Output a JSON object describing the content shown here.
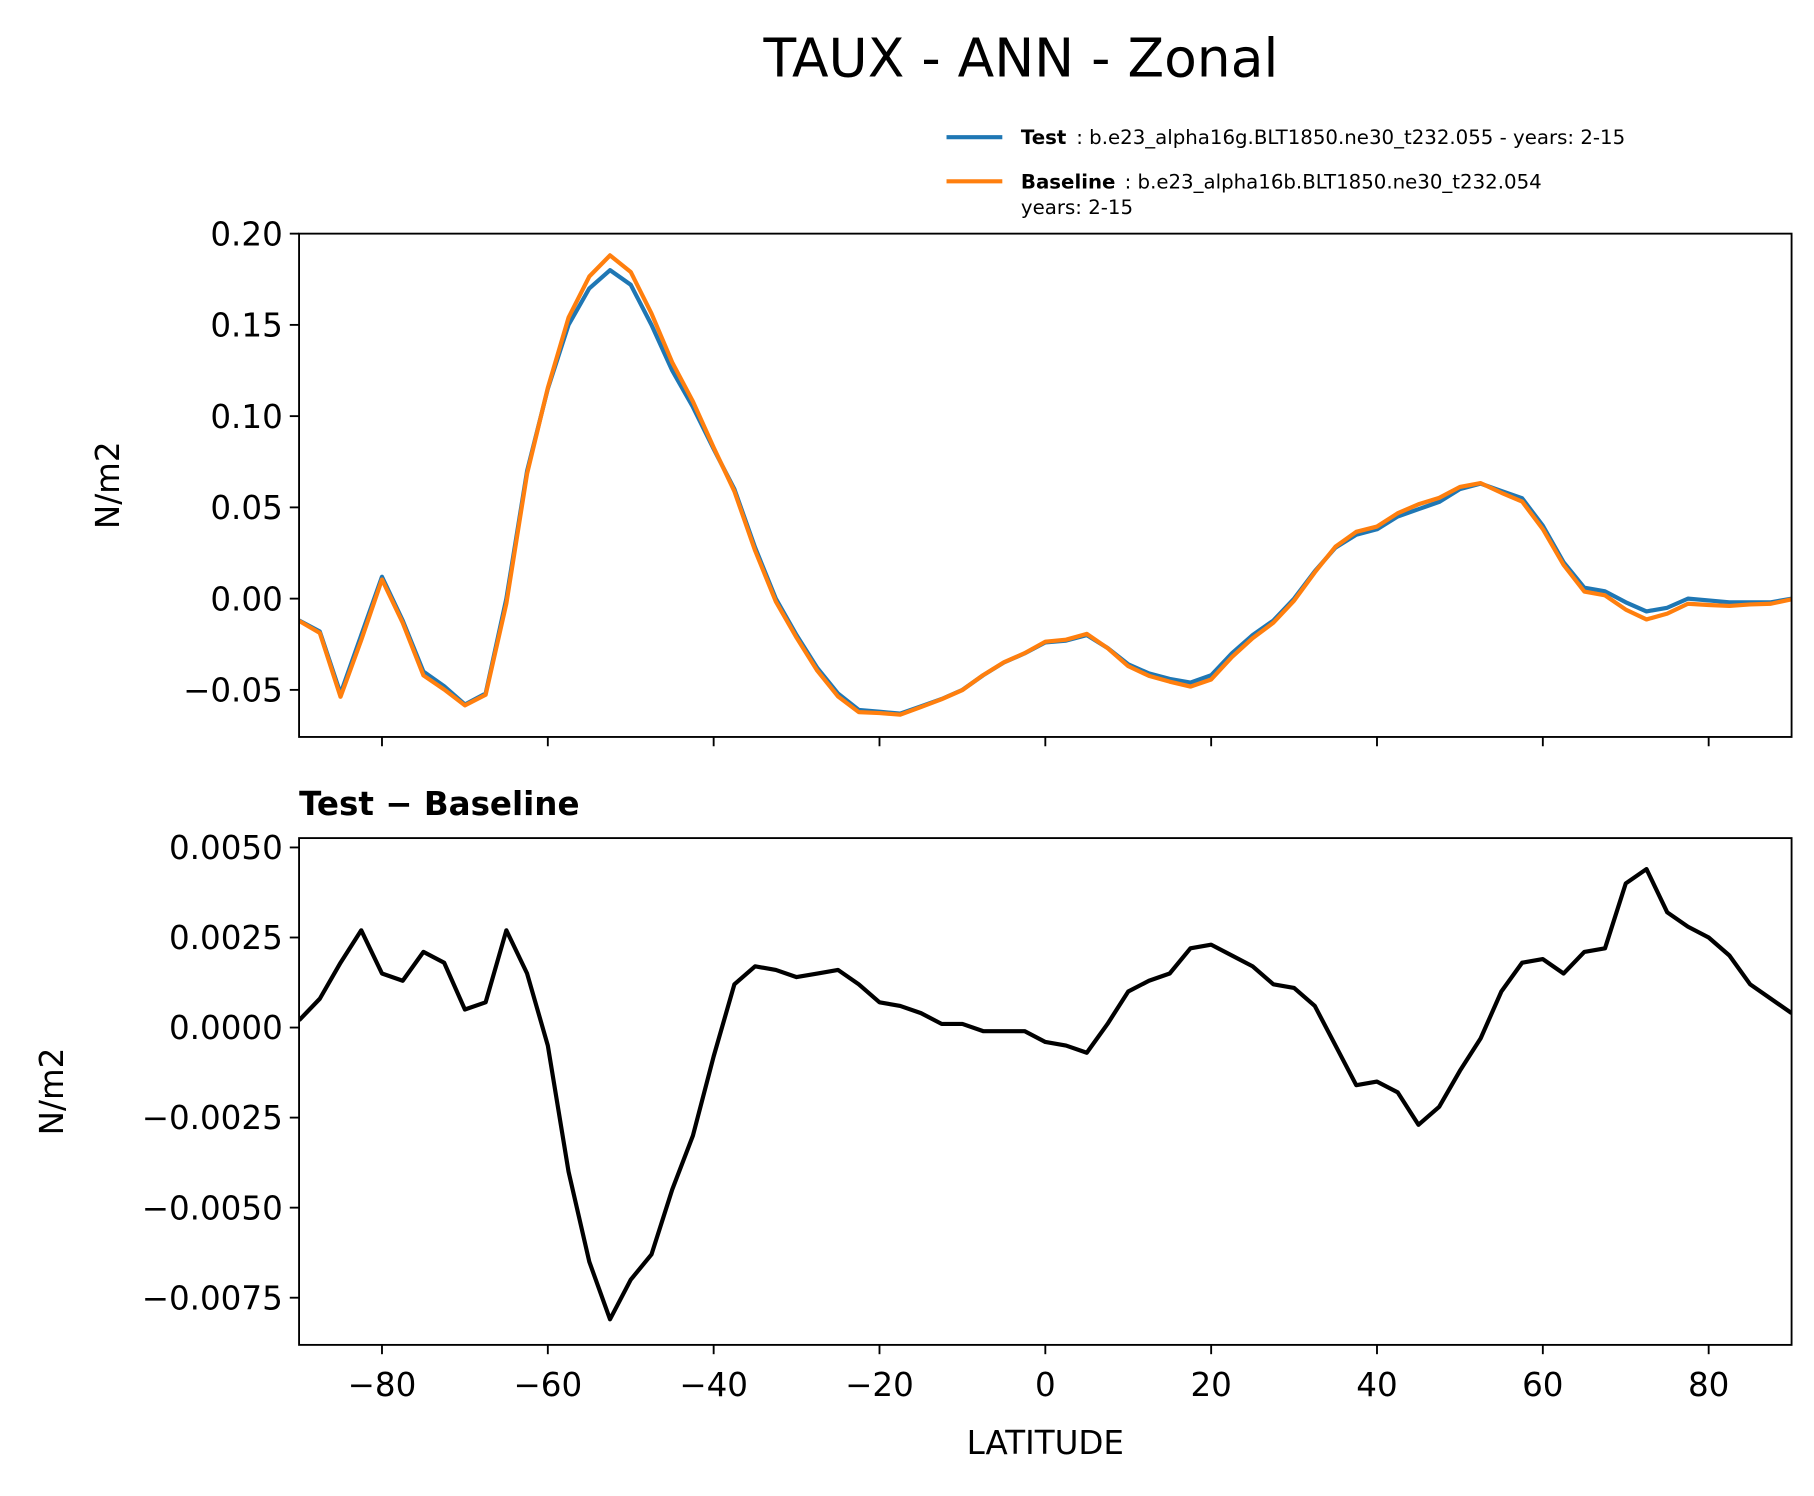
{
  "title": "TAUX - ANN - Zonal",
  "chart_data": [
    {
      "type": "line",
      "ylabel": "N/m2",
      "x": [
        -90,
        -87.5,
        -85,
        -82.5,
        -80,
        -77.5,
        -75,
        -72.5,
        -70,
        -67.5,
        -65,
        -62.5,
        -60,
        -57.5,
        -55,
        -52.5,
        -50,
        -47.5,
        -45,
        -42.5,
        -40,
        -37.5,
        -35,
        -32.5,
        -30,
        -27.5,
        -25,
        -22.5,
        -20,
        -17.5,
        -15,
        -12.5,
        -10,
        -7.5,
        -5,
        -2.5,
        0,
        2.5,
        5,
        7.5,
        10,
        12.5,
        15,
        17.5,
        20,
        22.5,
        25,
        27.5,
        30,
        32.5,
        35,
        37.5,
        40,
        42.5,
        45,
        47.5,
        50,
        52.5,
        55,
        57.5,
        60,
        62.5,
        65,
        67.5,
        70,
        72.5,
        75,
        77.5,
        80,
        82.5,
        85,
        87.5,
        90
      ],
      "series": [
        {
          "name": "Test",
          "legend_text": [
            ": b.e23_alpha16g.BLT1850.ne30_t232.055 - years: 2-15"
          ],
          "color": "#1f77b4",
          "values": [
            -0.012,
            -0.018,
            -0.052,
            -0.02,
            0.012,
            -0.012,
            -0.04,
            -0.048,
            -0.058,
            -0.052,
            0.0,
            0.07,
            0.115,
            0.15,
            0.17,
            0.18,
            0.172,
            0.15,
            0.125,
            0.105,
            0.082,
            0.06,
            0.028,
            0.0,
            -0.02,
            -0.038,
            -0.052,
            -0.061,
            -0.062,
            -0.063,
            -0.059,
            -0.055,
            -0.05,
            -0.042,
            -0.035,
            -0.03,
            -0.024,
            -0.023,
            -0.02,
            -0.027,
            -0.036,
            -0.041,
            -0.044,
            -0.046,
            -0.042,
            -0.03,
            -0.02,
            -0.012,
            0.0,
            0.015,
            0.028,
            0.035,
            0.038,
            0.045,
            0.049,
            0.053,
            0.06,
            0.063,
            0.059,
            0.055,
            0.04,
            0.02,
            0.006,
            0.004,
            -0.002,
            -0.007,
            -0.005,
            0.0,
            -0.001,
            -0.002,
            -0.002,
            -0.002,
            0.0
          ]
        },
        {
          "name": "Baseline",
          "legend_text": [
            ": b.e23_alpha16b.BLT1850.ne30_t232.054",
            "years: 2-15"
          ],
          "color": "#ff7f0e",
          "values": [
            -0.0122,
            -0.0188,
            -0.0538,
            -0.0227,
            0.0105,
            -0.0133,
            -0.0421,
            -0.0498,
            -0.0585,
            -0.0527,
            -0.0027,
            0.0685,
            0.1155,
            0.154,
            0.1765,
            0.1881,
            0.179,
            0.1563,
            0.1295,
            0.108,
            0.0828,
            0.0588,
            0.0263,
            -0.0016,
            -0.0214,
            -0.0395,
            -0.0536,
            -0.0622,
            -0.0627,
            -0.0636,
            -0.0594,
            -0.0551,
            -0.0501,
            -0.0419,
            -0.0349,
            -0.0299,
            -0.0236,
            -0.0225,
            -0.0193,
            -0.0271,
            -0.037,
            -0.0423,
            -0.0455,
            -0.0482,
            -0.0443,
            -0.032,
            -0.0217,
            -0.0132,
            -0.0011,
            0.0144,
            0.0285,
            0.0366,
            0.0395,
            0.0468,
            0.0517,
            0.0552,
            0.0612,
            0.0633,
            0.058,
            0.0532,
            0.0381,
            0.0185,
            0.0039,
            0.0018,
            -0.006,
            -0.0114,
            -0.0082,
            -0.0028,
            -0.0035,
            -0.004,
            -0.0032,
            -0.0028,
            -0.0004
          ]
        }
      ],
      "xlim": [
        -90,
        90
      ],
      "xticks": [
        -80,
        -60,
        -40,
        -20,
        0,
        20,
        40,
        60,
        80
      ],
      "ylim": [
        -0.0758,
        0.2
      ],
      "yticks": [
        {
          "value": -0.05,
          "label": "−0.05"
        },
        {
          "value": 0,
          "label": "0.00"
        },
        {
          "value": 0.05,
          "label": "0.05"
        },
        {
          "value": 0.1,
          "label": "0.10"
        },
        {
          "value": 0.15,
          "label": "0.15"
        },
        {
          "value": 0.2,
          "label": "0.20"
        }
      ],
      "legend": "upper right"
    },
    {
      "type": "line",
      "title": "Test − Baseline",
      "ylabel": "N/m2",
      "xlabel": "LATITUDE",
      "x": [
        -90,
        -87.5,
        -85,
        -82.5,
        -80,
        -77.5,
        -75,
        -72.5,
        -70,
        -67.5,
        -65,
        -62.5,
        -60,
        -57.5,
        -55,
        -52.5,
        -50,
        -47.5,
        -45,
        -42.5,
        -40,
        -37.5,
        -35,
        -32.5,
        -30,
        -27.5,
        -25,
        -22.5,
        -20,
        -17.5,
        -15,
        -12.5,
        -10,
        -7.5,
        -5,
        -2.5,
        0,
        2.5,
        5,
        7.5,
        10,
        12.5,
        15,
        17.5,
        20,
        22.5,
        25,
        27.5,
        30,
        32.5,
        35,
        37.5,
        40,
        42.5,
        45,
        47.5,
        50,
        52.5,
        55,
        57.5,
        60,
        62.5,
        65,
        67.5,
        70,
        72.5,
        75,
        77.5,
        80,
        82.5,
        85,
        87.5,
        90
      ],
      "series": [
        {
          "color": "#000000",
          "values": [
            0.0002,
            0.0008,
            0.0018,
            0.0027,
            0.0015,
            0.0013,
            0.0021,
            0.0018,
            0.0005,
            0.0007,
            0.0027,
            0.0015,
            -0.0005,
            -0.004,
            -0.0065,
            -0.0081,
            -0.007,
            -0.0063,
            -0.0045,
            -0.003,
            -0.0008,
            0.0012,
            0.0017,
            0.0016,
            0.0014,
            0.0015,
            0.0016,
            0.0012,
            0.0007,
            0.0006,
            0.0004,
            0.0001,
            0.0001,
            -0.0001,
            -0.0001,
            -0.0001,
            -0.0004,
            -0.0005,
            -0.0007,
            0.0001,
            0.001,
            0.0013,
            0.0015,
            0.0022,
            0.0023,
            0.002,
            0.0017,
            0.0012,
            0.0011,
            0.0006,
            -0.0005,
            -0.0016,
            -0.0015,
            -0.0018,
            -0.0027,
            -0.0022,
            -0.0012,
            -0.0003,
            0.001,
            0.0018,
            0.0019,
            0.0015,
            0.0021,
            0.0022,
            0.004,
            0.0044,
            0.0032,
            0.0028,
            0.0025,
            0.002,
            0.0012,
            0.0008,
            0.0004
          ]
        }
      ],
      "xlim": [
        -90,
        90
      ],
      "xticks": [
        {
          "value": -80,
          "label": "−80"
        },
        {
          "value": -60,
          "label": "−60"
        },
        {
          "value": -40,
          "label": "−40"
        },
        {
          "value": -20,
          "label": "−20"
        },
        0,
        20,
        40,
        60,
        80
      ],
      "ylim": [
        -0.00881,
        0.00526
      ],
      "yticks": [
        {
          "value": -0.0075,
          "label": "−0.0075"
        },
        {
          "value": -0.005,
          "label": "−0.0050"
        },
        {
          "value": -0.0025,
          "label": "−0.0025"
        },
        {
          "value": 0,
          "label": "0.0000"
        },
        {
          "value": 0.0025,
          "label": "0.0025"
        },
        {
          "value": 0.005,
          "label": "0.0050"
        }
      ]
    }
  ]
}
